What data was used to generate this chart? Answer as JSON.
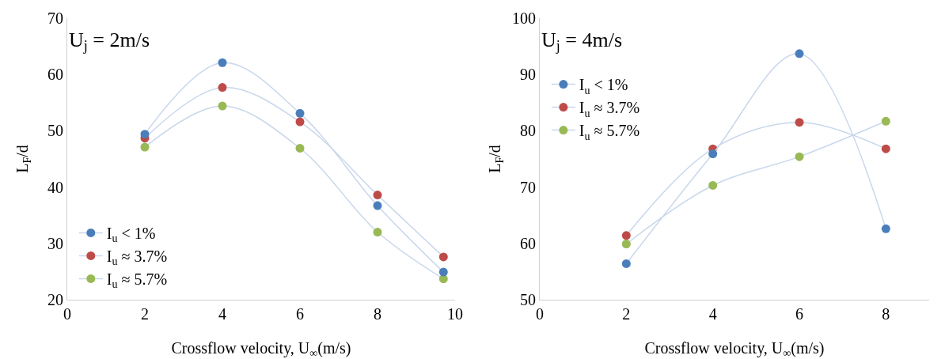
{
  "chart_data": [
    {
      "type": "line",
      "title": "U$_{j}$ = 2m/s",
      "xlabel": "Crossflow velocity, U$_{∞}$(m/s)",
      "ylabel": "L$_{F}$/d",
      "x": [
        2,
        4,
        6,
        8,
        9.7
      ],
      "xlim": [
        0,
        10
      ],
      "xticks": [
        0,
        2,
        4,
        6,
        8,
        10
      ],
      "ylim": [
        20,
        70
      ],
      "yticks": [
        20,
        30,
        40,
        50,
        60,
        70
      ],
      "grid": false,
      "legend": "bottom left",
      "marker": "circle",
      "line_style": "solid",
      "series": [
        {
          "name": "I$_{u}$ < 1%",
          "color": "#4a7ebb",
          "values": [
            49.4,
            62.1,
            53.1,
            36.7,
            24.9
          ]
        },
        {
          "name": "I$_{u}$ ≈ 3.7%",
          "color": "#be4b48",
          "values": [
            48.7,
            57.7,
            51.6,
            38.6,
            27.6
          ]
        },
        {
          "name": "I$_{u}$ ≈ 5.7%",
          "color": "#98b954",
          "values": [
            47.1,
            54.4,
            46.9,
            32.0,
            23.7
          ]
        }
      ]
    },
    {
      "type": "line",
      "title": "U$_{j}$ = 4m/s",
      "xlabel": "Crossflow velocity, U$_{∞}$(m/s)",
      "ylabel": "L$_{F}$/d",
      "x": [
        2,
        4,
        6,
        8
      ],
      "xlim": [
        0,
        9
      ],
      "xticks": [
        0,
        2,
        4,
        6,
        8
      ],
      "ylim": [
        50,
        100
      ],
      "yticks": [
        50,
        60,
        70,
        80,
        90,
        100
      ],
      "grid": false,
      "legend": "top left",
      "marker": "circle",
      "line_style": "solid",
      "series": [
        {
          "name": "I$_{u}$ < 1%",
          "color": "#4a7ebb",
          "values": [
            56.4,
            75.9,
            93.7,
            62.6
          ]
        },
        {
          "name": "I$_{u}$ ≈ 3.7%",
          "color": "#be4b48",
          "values": [
            61.4,
            76.8,
            81.5,
            76.8
          ]
        },
        {
          "name": "I$_{u}$ ≈ 5.7%",
          "color": "#98b954",
          "values": [
            59.9,
            70.3,
            75.4,
            81.7
          ]
        }
      ]
    }
  ]
}
